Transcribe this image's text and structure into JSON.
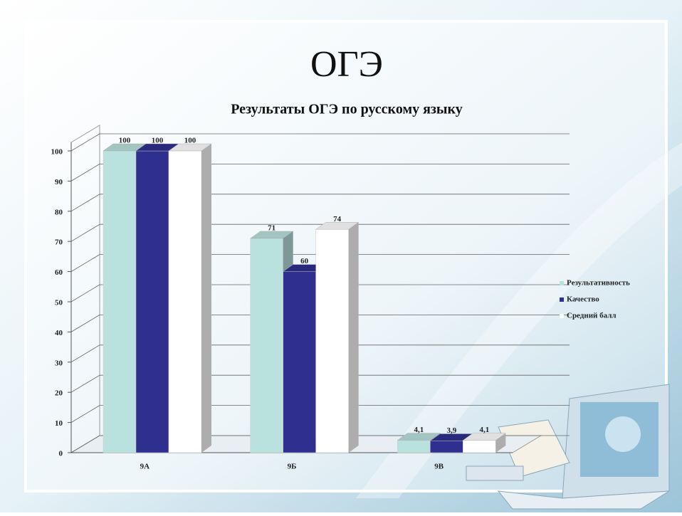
{
  "slide_title": "ОГЭ",
  "chart_data": {
    "type": "bar3d",
    "title": "Результаты ОГЭ по русскому языку",
    "categories": [
      "9А",
      "9Б",
      "9В"
    ],
    "series": [
      {
        "name": "Результативность",
        "color": "#b9e1dd",
        "values": [
          100,
          71,
          4.1
        ],
        "value_labels": [
          "100",
          "71",
          "4,1"
        ]
      },
      {
        "name": "Качество",
        "color": "#2f2f8f",
        "values": [
          100,
          60,
          3.9
        ],
        "value_labels": [
          "100",
          "60",
          "3,9"
        ]
      },
      {
        "name": "Средний балл",
        "color": "#ffffff",
        "values": [
          100,
          74,
          4.1
        ],
        "value_labels": [
          "100",
          "74",
          "4,1"
        ]
      }
    ],
    "ylim": [
      0,
      100
    ],
    "yticks": [
      0,
      10,
      20,
      30,
      40,
      50,
      60,
      70,
      80,
      90,
      100
    ],
    "grid": true,
    "legend": "right"
  }
}
